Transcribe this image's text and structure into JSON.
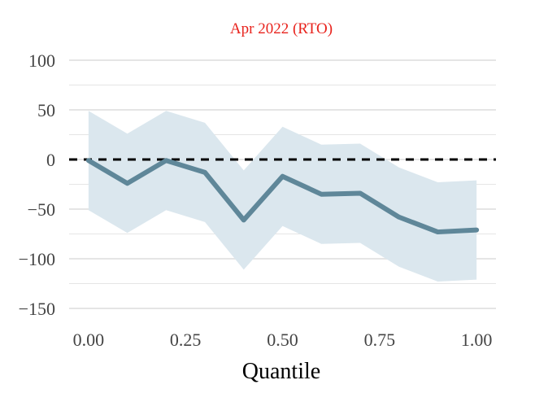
{
  "chart_data": {
    "type": "line",
    "title": "Apr 2022 (RTO)",
    "xlabel": "Quantile",
    "ylabel": "",
    "xlim": [
      -0.05,
      1.05
    ],
    "ylim": [
      -150,
      100
    ],
    "x_ticks": [
      0.0,
      0.25,
      0.5,
      0.75,
      1.0
    ],
    "x_tick_labels": [
      "0.00",
      "0.25",
      "0.50",
      "0.75",
      "1.00"
    ],
    "y_ticks": [
      -150,
      -100,
      -50,
      0,
      50,
      100
    ],
    "y_tick_labels": [
      "−150",
      "−100",
      "−50",
      "0",
      "50",
      "100"
    ],
    "grid": true,
    "reference_line": {
      "y": 0,
      "style": "dashed"
    },
    "x": [
      0.0,
      0.1,
      0.2,
      0.3,
      0.4,
      0.5,
      0.6,
      0.7,
      0.8,
      0.9,
      1.0
    ],
    "series": [
      {
        "values": [
          -1,
          -24,
          -1,
          -13,
          -61,
          -17,
          -35,
          -34,
          -58,
          -73,
          -71
        ],
        "lower": [
          -51,
          -74,
          -51,
          -63,
          -111,
          -67,
          -85,
          -84,
          -108,
          -123,
          -121
        ],
        "upper": [
          49,
          26,
          49,
          37,
          -11,
          33,
          15,
          16,
          -8,
          -23,
          -21
        ]
      }
    ],
    "colors": {
      "title": "#e8221c",
      "line": "#5f8799",
      "band": "#dbe7ee",
      "grid": "#e5e5e5",
      "zero_line": "#000000",
      "tick_text": "#444444"
    }
  }
}
